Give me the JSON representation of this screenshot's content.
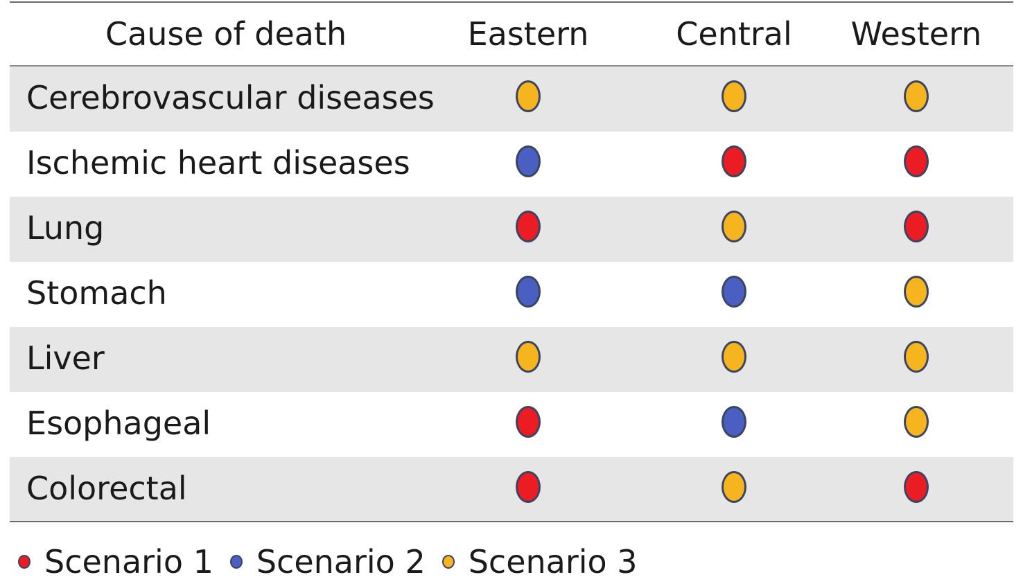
{
  "chart_data": {
    "type": "table",
    "columns": [
      "Cause of death",
      "Eastern",
      "Central",
      "Western"
    ],
    "rows": [
      {
        "cause": "Cerebrovascular diseases",
        "values": [
          "Scenario 3",
          "Scenario 3",
          "Scenario 3"
        ]
      },
      {
        "cause": "Ischemic heart diseases",
        "values": [
          "Scenario 2",
          "Scenario 1",
          "Scenario 1"
        ]
      },
      {
        "cause": "Lung",
        "values": [
          "Scenario 1",
          "Scenario 3",
          "Scenario 1"
        ]
      },
      {
        "cause": "Stomach",
        "values": [
          "Scenario 2",
          "Scenario 2",
          "Scenario 3"
        ]
      },
      {
        "cause": "Liver",
        "values": [
          "Scenario 3",
          "Scenario 3",
          "Scenario 3"
        ]
      },
      {
        "cause": "Esophageal",
        "values": [
          "Scenario 1",
          "Scenario 2",
          "Scenario 3"
        ]
      },
      {
        "cause": "Colorectal",
        "values": [
          "Scenario 1",
          "Scenario 3",
          "Scenario 1"
        ]
      }
    ],
    "legend": [
      {
        "name": "Scenario 1",
        "color": "#ec1c24"
      },
      {
        "name": "Scenario 2",
        "color": "#4a5fc1"
      },
      {
        "name": "Scenario 3",
        "color": "#f6b51e"
      }
    ],
    "legend_placement": "bottom-left",
    "row_shading": "alternating"
  }
}
